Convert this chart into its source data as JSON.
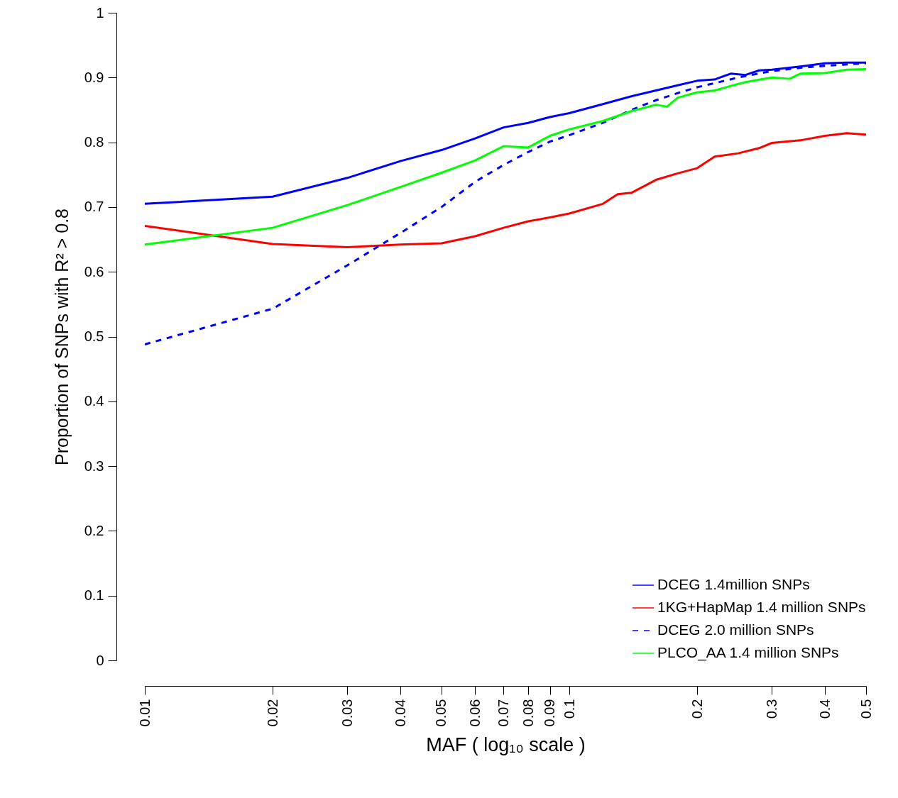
{
  "chart_data": {
    "type": "line",
    "xlabel": "MAF ( log₁₀ scale )",
    "ylabel": "Proportion of SNPs with R² > 0.8",
    "log": "x",
    "grid": false,
    "legend": "bottom right",
    "marker": "none",
    "xlim": [
      0.01,
      0.5
    ],
    "xticks": [
      0.01,
      0.02,
      0.03,
      0.04,
      0.05,
      0.06,
      0.07,
      0.08,
      0.09,
      0.1,
      0.2,
      0.3,
      0.4,
      0.5
    ],
    "ylim": [
      0,
      1
    ],
    "yticks": [
      0,
      0.1,
      0.2,
      0.3,
      0.4,
      0.5,
      0.6,
      0.7,
      0.8,
      0.9,
      1
    ],
    "series": [
      {
        "name": "DCEG 1.4million SNPs",
        "color": "#0000ff",
        "line_style": "solid",
        "x": [
          0.01,
          0.02,
          0.03,
          0.04,
          0.05,
          0.06,
          0.07,
          0.08,
          0.09,
          0.1,
          0.12,
          0.14,
          0.16,
          0.18,
          0.2,
          0.22,
          0.24,
          0.26,
          0.28,
          0.3,
          0.35,
          0.4,
          0.45,
          0.5
        ],
        "values": [
          0.705,
          0.716,
          0.745,
          0.771,
          0.788,
          0.806,
          0.823,
          0.83,
          0.839,
          0.845,
          0.859,
          0.871,
          0.88,
          0.888,
          0.895,
          0.897,
          0.906,
          0.904,
          0.911,
          0.912,
          0.917,
          0.922,
          0.923,
          0.923
        ]
      },
      {
        "name": "1KG+HapMap 1.4 million SNPs",
        "color": "#ff0000",
        "line_style": "solid",
        "x": [
          0.01,
          0.02,
          0.03,
          0.04,
          0.05,
          0.06,
          0.07,
          0.08,
          0.09,
          0.1,
          0.12,
          0.13,
          0.14,
          0.16,
          0.18,
          0.2,
          0.22,
          0.25,
          0.28,
          0.3,
          0.35,
          0.4,
          0.45,
          0.5
        ],
        "values": [
          0.671,
          0.643,
          0.638,
          0.642,
          0.644,
          0.655,
          0.668,
          0.678,
          0.684,
          0.69,
          0.705,
          0.72,
          0.722,
          0.742,
          0.752,
          0.76,
          0.778,
          0.783,
          0.791,
          0.799,
          0.803,
          0.81,
          0.814,
          0.812
        ]
      },
      {
        "name": "DCEG 2.0 million SNPs",
        "color": "#0000ff",
        "line_style": "dashed",
        "x": [
          0.01,
          0.02,
          0.03,
          0.04,
          0.05,
          0.06,
          0.07,
          0.08,
          0.09,
          0.1,
          0.12,
          0.14,
          0.16,
          0.18,
          0.2,
          0.25,
          0.3,
          0.35,
          0.4,
          0.5
        ],
        "values": [
          0.488,
          0.543,
          0.61,
          0.66,
          0.7,
          0.739,
          0.765,
          0.785,
          0.801,
          0.811,
          0.83,
          0.85,
          0.865,
          0.876,
          0.885,
          0.9,
          0.91,
          0.915,
          0.918,
          0.922
        ]
      },
      {
        "name": "PLCO_AA 1.4 million SNPs",
        "color": "#00ff00",
        "line_style": "solid",
        "x": [
          0.01,
          0.02,
          0.03,
          0.04,
          0.05,
          0.06,
          0.07,
          0.08,
          0.09,
          0.1,
          0.12,
          0.14,
          0.16,
          0.17,
          0.18,
          0.2,
          0.22,
          0.24,
          0.26,
          0.3,
          0.33,
          0.35,
          0.4,
          0.45,
          0.5
        ],
        "values": [
          0.642,
          0.668,
          0.703,
          0.731,
          0.753,
          0.772,
          0.794,
          0.792,
          0.81,
          0.82,
          0.833,
          0.848,
          0.858,
          0.855,
          0.869,
          0.877,
          0.88,
          0.887,
          0.893,
          0.9,
          0.898,
          0.906,
          0.907,
          0.912,
          0.913
        ]
      }
    ]
  }
}
